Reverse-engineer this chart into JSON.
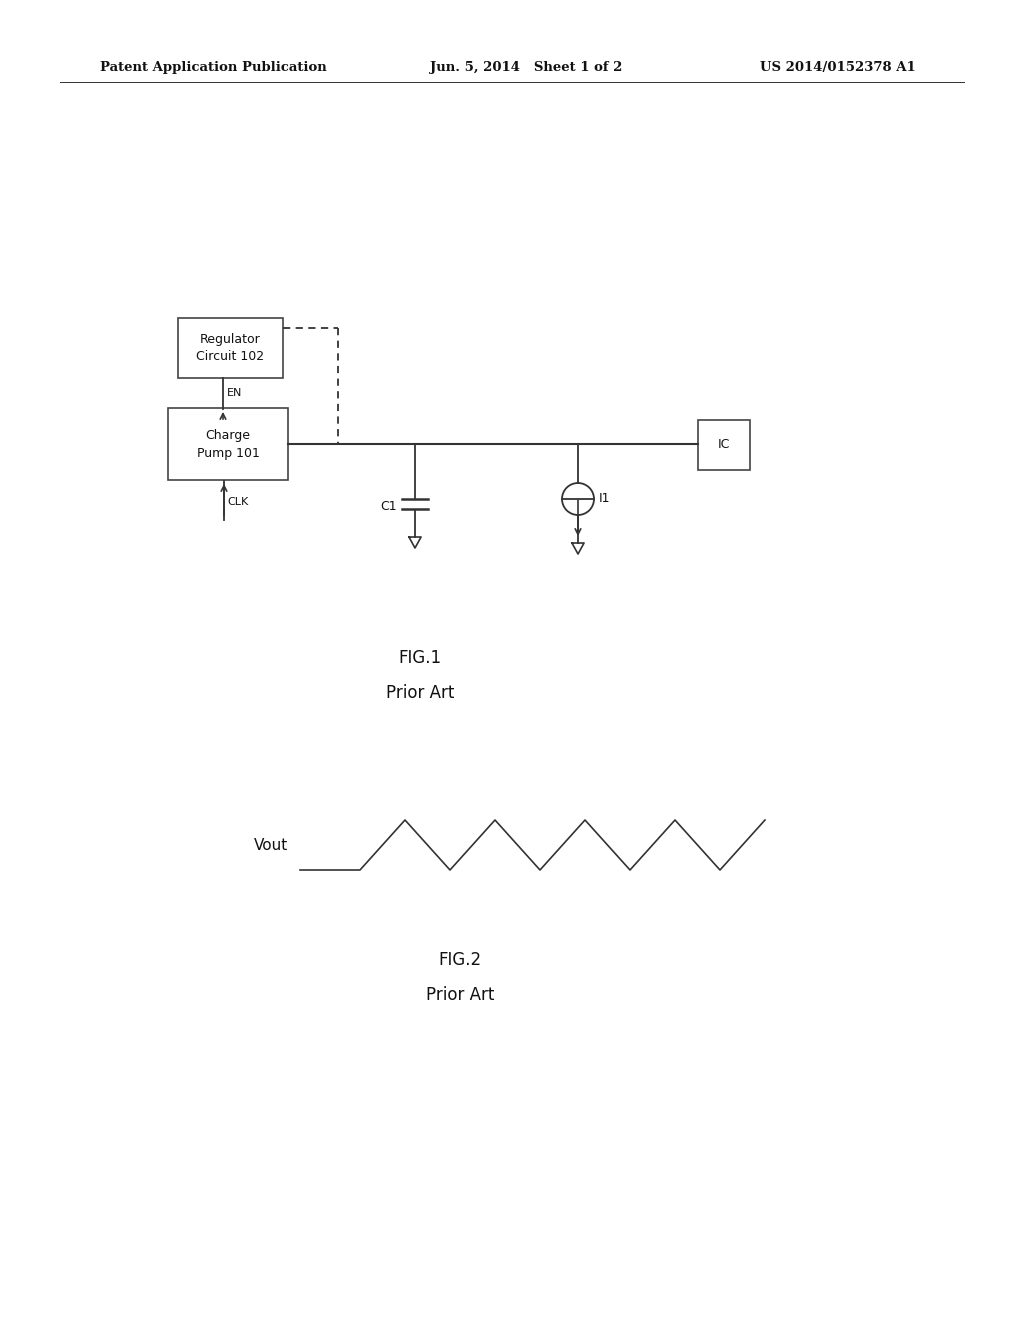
{
  "bg_color": "#ffffff",
  "header_left": "Patent Application Publication",
  "header_mid": "Jun. 5, 2014   Sheet 1 of 2",
  "header_right": "US 2014/0152378 A1",
  "box_reg_text": "Regulator\nCircuit 102",
  "box_cp_text": "Charge\nPump 101",
  "box_ic_text": "IC",
  "label_en": "EN",
  "label_clk": "CLK",
  "label_c1": "C1",
  "label_i1": "I1",
  "label_vout": "Vout",
  "fig1_label": "FIG.1",
  "fig1_prior_art": "Prior Art",
  "fig2_label": "FIG.2",
  "fig2_prior_art": "Prior Art",
  "line_color": "#333333",
  "text_color": "#111111",
  "box_edge_color": "#444444",
  "dashed_color": "#555555"
}
